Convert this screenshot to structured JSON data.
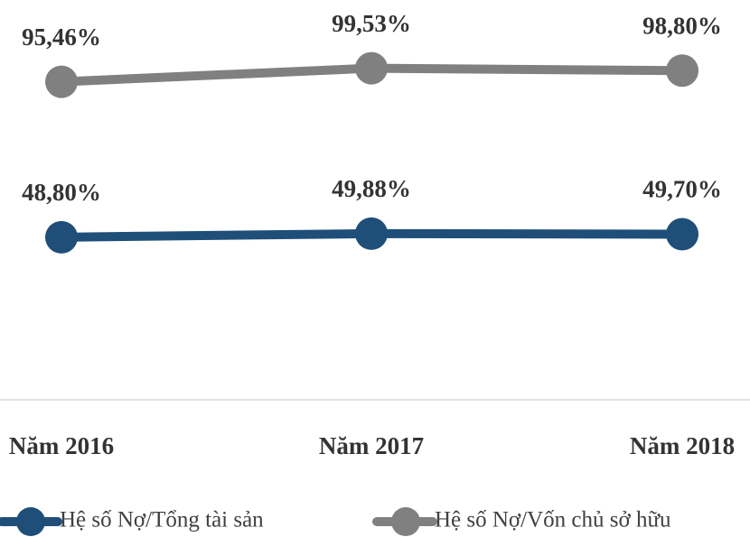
{
  "chart_data": {
    "type": "line",
    "categories": [
      "Năm 2016",
      "Năm 2017",
      "Năm 2018"
    ],
    "series": [
      {
        "name": "Hệ số Nợ/Tổng tài sản",
        "color": "#1f4e79",
        "values": [
          48.8,
          49.88,
          49.7
        ],
        "value_labels": [
          "48,80%",
          "49,88%",
          "49,70%"
        ]
      },
      {
        "name": "Hệ số Nợ/Vốn chủ sở hữu",
        "color": "#808080",
        "values": [
          95.46,
          99.53,
          98.8
        ],
        "value_labels": [
          "95,46%",
          "99,53%",
          "98,80%"
        ]
      }
    ],
    "ylim": [
      0,
      120
    ],
    "legend": "bottom",
    "grid": false
  }
}
